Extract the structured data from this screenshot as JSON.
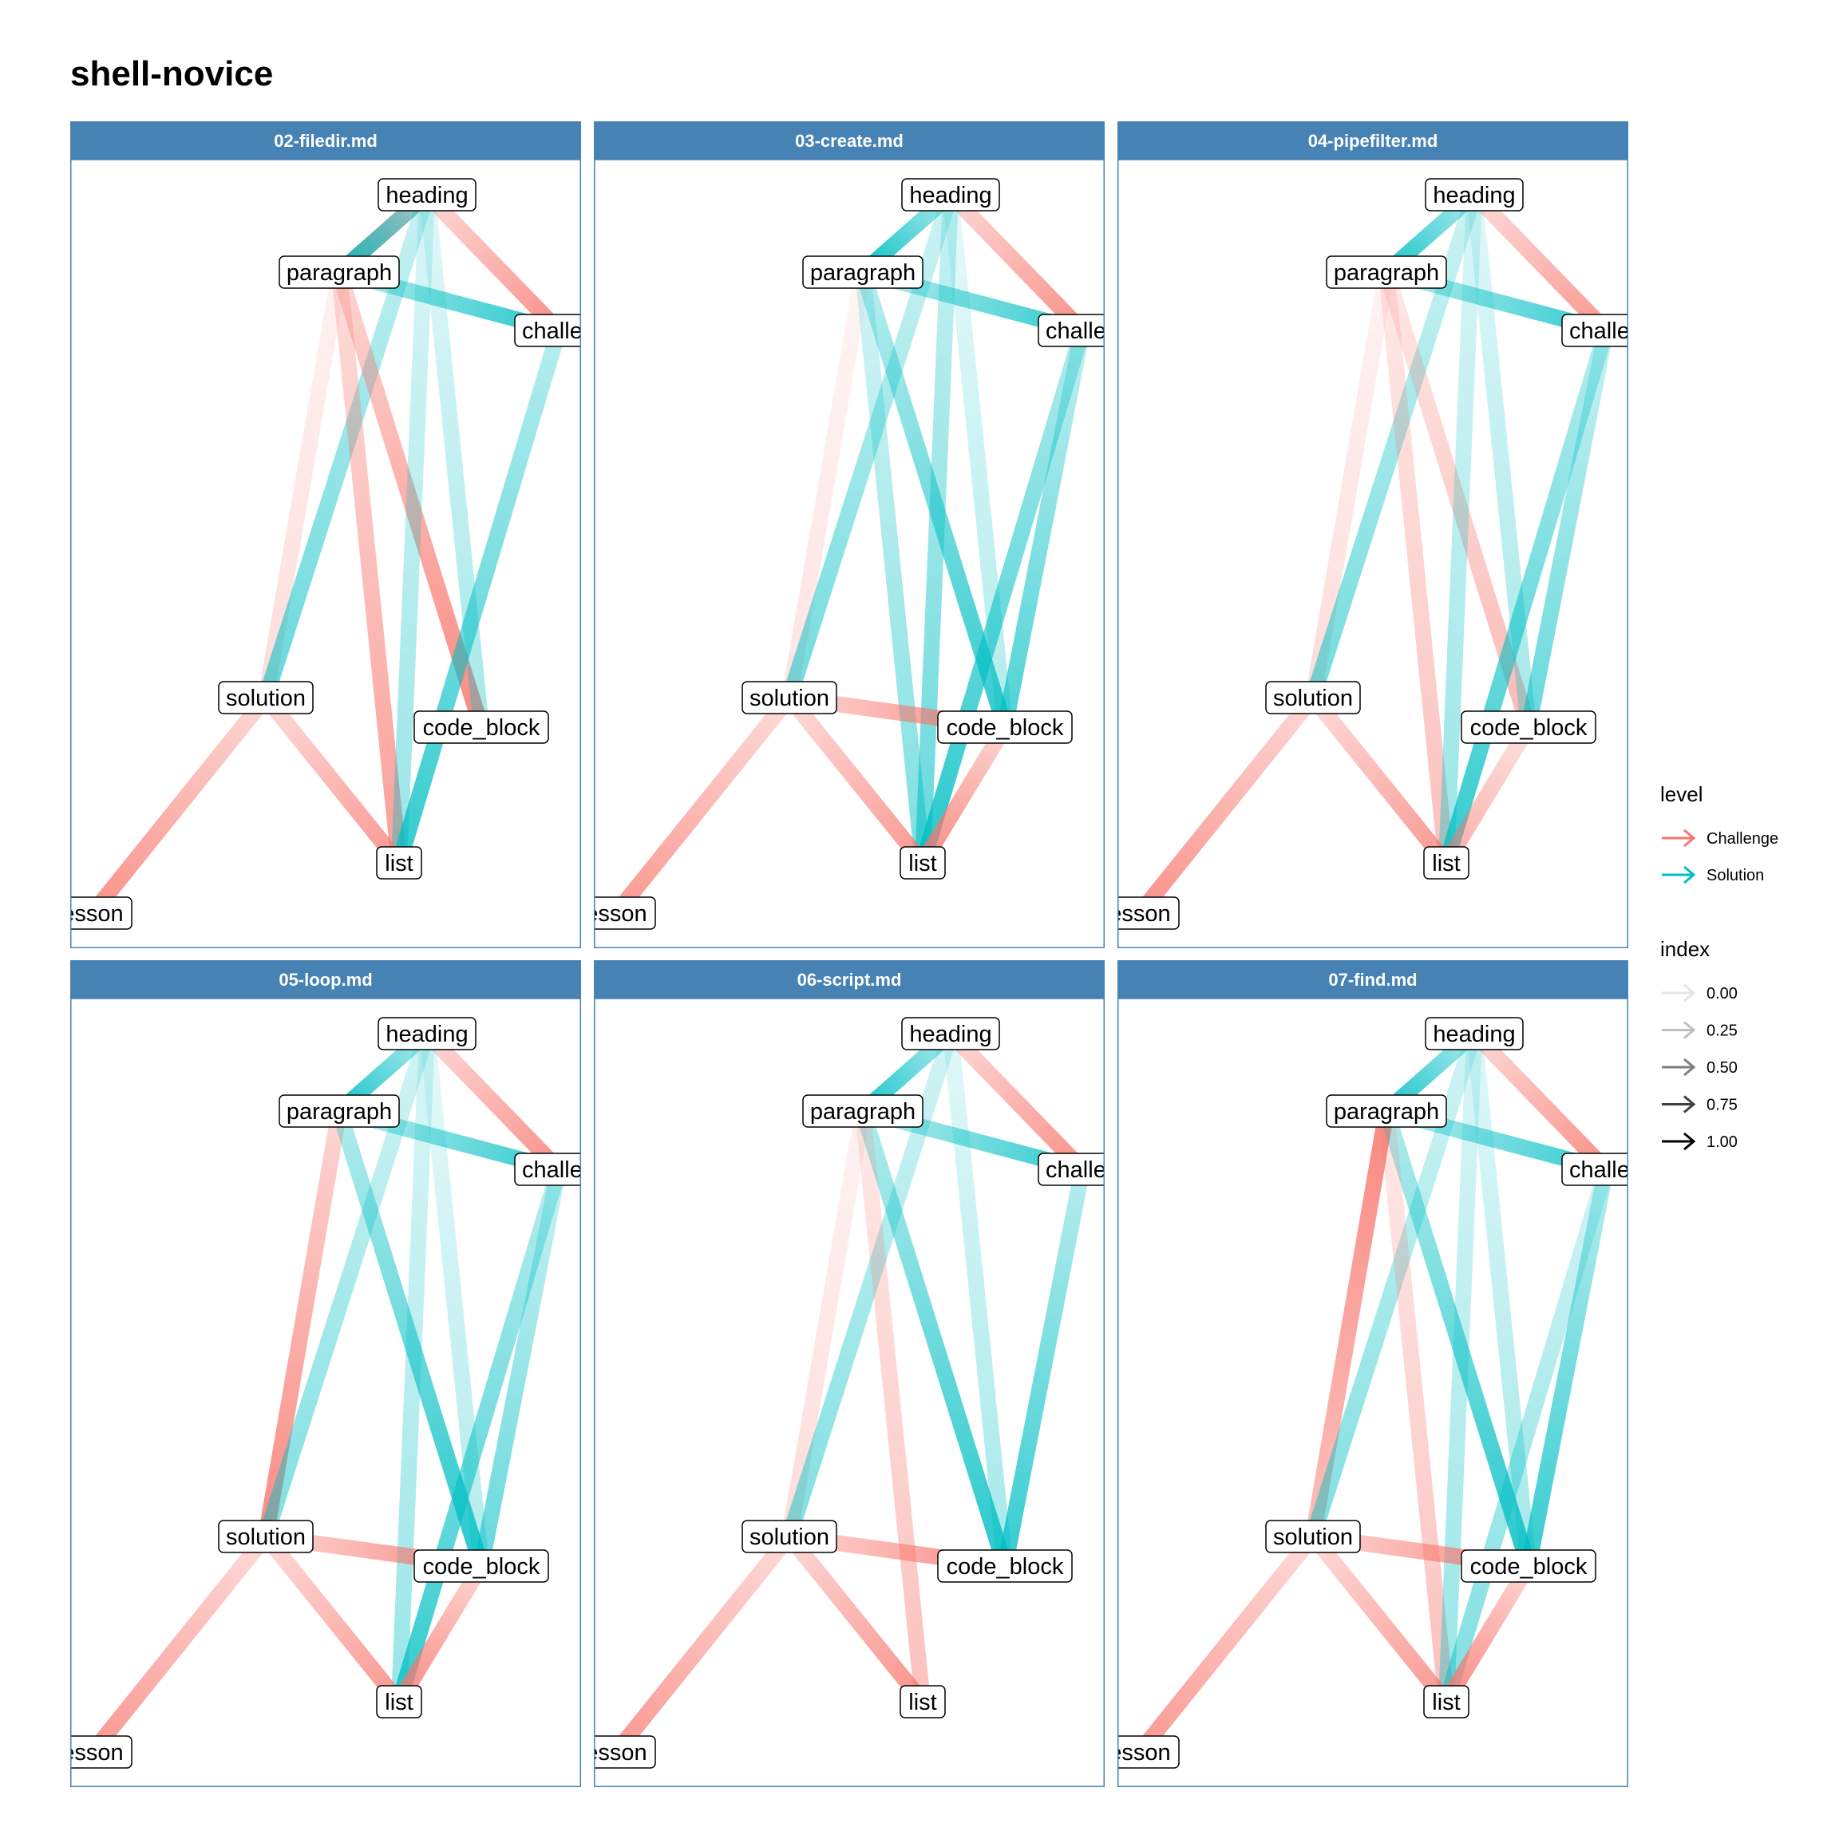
{
  "title": "shell-novice",
  "colors": {
    "Challenge": "#f8766d",
    "Solution": "#00bfc4",
    "strip": "#4682b4",
    "strip_text": "#ffffff",
    "panel_border": "#4682b4"
  },
  "panels": [
    {
      "name": "02-filedir.md",
      "edges": [
        [
          "heading",
          "paragraph",
          "Challenge",
          0.9
        ],
        [
          "heading",
          "paragraph",
          "Solution",
          0.9
        ],
        [
          "heading",
          "challenge",
          "Challenge",
          0.8
        ],
        [
          "paragraph",
          "challenge",
          "Solution",
          0.85
        ],
        [
          "paragraph",
          "solution",
          "Challenge",
          0.25
        ],
        [
          "heading",
          "solution",
          "Solution",
          0.6
        ],
        [
          "paragraph",
          "code_block",
          "Challenge",
          0.85
        ],
        [
          "paragraph",
          "list",
          "Challenge",
          0.7
        ],
        [
          "heading",
          "list",
          "Solution",
          0.4
        ],
        [
          "challenge",
          "list",
          "Solution",
          0.8
        ],
        [
          "heading",
          "code_block",
          "Solution",
          0.35
        ],
        [
          "solution",
          "lesson",
          "Challenge",
          0.8
        ],
        [
          "solution",
          "list",
          "Challenge",
          0.75
        ]
      ]
    },
    {
      "name": "03-create.md",
      "edges": [
        [
          "heading",
          "paragraph",
          "Solution",
          0.95
        ],
        [
          "heading",
          "challenge",
          "Challenge",
          0.8
        ],
        [
          "paragraph",
          "challenge",
          "Solution",
          0.8
        ],
        [
          "paragraph",
          "solution",
          "Challenge",
          0.2
        ],
        [
          "heading",
          "solution",
          "Solution",
          0.55
        ],
        [
          "paragraph",
          "code_block",
          "Solution",
          0.8
        ],
        [
          "paragraph",
          "list",
          "Solution",
          0.5
        ],
        [
          "heading",
          "list",
          "Solution",
          0.6
        ],
        [
          "heading",
          "code_block",
          "Solution",
          0.3
        ],
        [
          "challenge",
          "list",
          "Solution",
          0.85
        ],
        [
          "challenge",
          "code_block",
          "Solution",
          0.7
        ],
        [
          "solution",
          "code_block",
          "Challenge",
          0.85
        ],
        [
          "solution",
          "list",
          "Challenge",
          0.75
        ],
        [
          "solution",
          "lesson",
          "Challenge",
          0.75
        ],
        [
          "code_block",
          "list",
          "Challenge",
          0.85
        ]
      ]
    },
    {
      "name": "04-pipefilter.md",
      "edges": [
        [
          "heading",
          "paragraph",
          "Solution",
          0.9
        ],
        [
          "heading",
          "challenge",
          "Challenge",
          0.75
        ],
        [
          "paragraph",
          "challenge",
          "Solution",
          0.8
        ],
        [
          "paragraph",
          "solution",
          "Challenge",
          0.25
        ],
        [
          "heading",
          "solution",
          "Solution",
          0.55
        ],
        [
          "paragraph",
          "code_block",
          "Challenge",
          0.5
        ],
        [
          "paragraph",
          "list",
          "Challenge",
          0.45
        ],
        [
          "heading",
          "list",
          "Solution",
          0.4
        ],
        [
          "heading",
          "code_block",
          "Solution",
          0.35
        ],
        [
          "challenge",
          "list",
          "Solution",
          0.8
        ],
        [
          "challenge",
          "code_block",
          "Solution",
          0.6
        ],
        [
          "solution",
          "list",
          "Challenge",
          0.75
        ],
        [
          "solution",
          "lesson",
          "Challenge",
          0.8
        ],
        [
          "code_block",
          "list",
          "Challenge",
          0.6
        ]
      ]
    },
    {
      "name": "05-loop.md",
      "edges": [
        [
          "heading",
          "paragraph",
          "Solution",
          0.9
        ],
        [
          "heading",
          "challenge",
          "Challenge",
          0.8
        ],
        [
          "paragraph",
          "challenge",
          "Solution",
          0.8
        ],
        [
          "paragraph",
          "solution",
          "Challenge",
          0.85
        ],
        [
          "heading",
          "solution",
          "Solution",
          0.5
        ],
        [
          "paragraph",
          "code_block",
          "Solution",
          0.85
        ],
        [
          "heading",
          "list",
          "Solution",
          0.4
        ],
        [
          "heading",
          "code_block",
          "Solution",
          0.3
        ],
        [
          "challenge",
          "list",
          "Solution",
          0.8
        ],
        [
          "challenge",
          "code_block",
          "Solution",
          0.6
        ],
        [
          "solution",
          "code_block",
          "Challenge",
          0.85
        ],
        [
          "solution",
          "list",
          "Challenge",
          0.75
        ],
        [
          "solution",
          "lesson",
          "Challenge",
          0.75
        ],
        [
          "code_block",
          "list",
          "Challenge",
          0.85
        ]
      ]
    },
    {
      "name": "06-script.md",
      "edges": [
        [
          "heading",
          "paragraph",
          "Solution",
          0.9
        ],
        [
          "heading",
          "challenge",
          "Challenge",
          0.8
        ],
        [
          "paragraph",
          "challenge",
          "Solution",
          0.8
        ],
        [
          "paragraph",
          "solution",
          "Challenge",
          0.25
        ],
        [
          "heading",
          "solution",
          "Solution",
          0.5
        ],
        [
          "paragraph",
          "code_block",
          "Solution",
          0.85
        ],
        [
          "paragraph",
          "list",
          "Challenge",
          0.45
        ],
        [
          "heading",
          "code_block",
          "Solution",
          0.35
        ],
        [
          "challenge",
          "code_block",
          "Solution",
          0.8
        ],
        [
          "solution",
          "code_block",
          "Challenge",
          0.85
        ],
        [
          "solution",
          "list",
          "Challenge",
          0.8
        ],
        [
          "solution",
          "lesson",
          "Challenge",
          0.75
        ]
      ]
    },
    {
      "name": "07-find.md",
      "edges": [
        [
          "heading",
          "paragraph",
          "Solution",
          0.9
        ],
        [
          "heading",
          "challenge",
          "Challenge",
          0.8
        ],
        [
          "paragraph",
          "challenge",
          "Solution",
          0.8
        ],
        [
          "paragraph",
          "solution",
          "Challenge",
          0.25
        ],
        [
          "solution",
          "paragraph",
          "Challenge",
          0.85
        ],
        [
          "heading",
          "solution",
          "Solution",
          0.5
        ],
        [
          "paragraph",
          "code_block",
          "Solution",
          0.85
        ],
        [
          "paragraph",
          "list",
          "Challenge",
          0.45
        ],
        [
          "heading",
          "list",
          "Solution",
          0.4
        ],
        [
          "heading",
          "code_block",
          "Solution",
          0.35
        ],
        [
          "challenge",
          "list",
          "Solution",
          0.5
        ],
        [
          "challenge",
          "code_block",
          "Solution",
          0.8
        ],
        [
          "solution",
          "code_block",
          "Challenge",
          0.85
        ],
        [
          "solution",
          "list",
          "Challenge",
          0.75
        ],
        [
          "solution",
          "lesson",
          "Challenge",
          0.75
        ],
        [
          "code_block",
          "list",
          "Challenge",
          0.85
        ]
      ]
    }
  ],
  "nodes": [
    {
      "id": "heading",
      "label": "heading"
    },
    {
      "id": "paragraph",
      "label": "paragraph"
    },
    {
      "id": "challenge",
      "label": "challen"
    },
    {
      "id": "solution",
      "label": "solution"
    },
    {
      "id": "code_block",
      "label": "code_block"
    },
    {
      "id": "list",
      "label": "list"
    },
    {
      "id": "lesson",
      "label": "esson"
    }
  ],
  "legend": {
    "level": {
      "title": "level",
      "items": [
        {
          "label": "Challenge",
          "color": "#f8766d"
        },
        {
          "label": "Solution",
          "color": "#00bfc4"
        }
      ]
    },
    "index": {
      "title": "index",
      "items": [
        {
          "label": "0.00",
          "value": 0.0
        },
        {
          "label": "0.25",
          "value": 0.25
        },
        {
          "label": "0.50",
          "value": 0.5
        },
        {
          "label": "0.75",
          "value": 0.75
        },
        {
          "label": "1.00",
          "value": 1.0
        }
      ]
    }
  }
}
